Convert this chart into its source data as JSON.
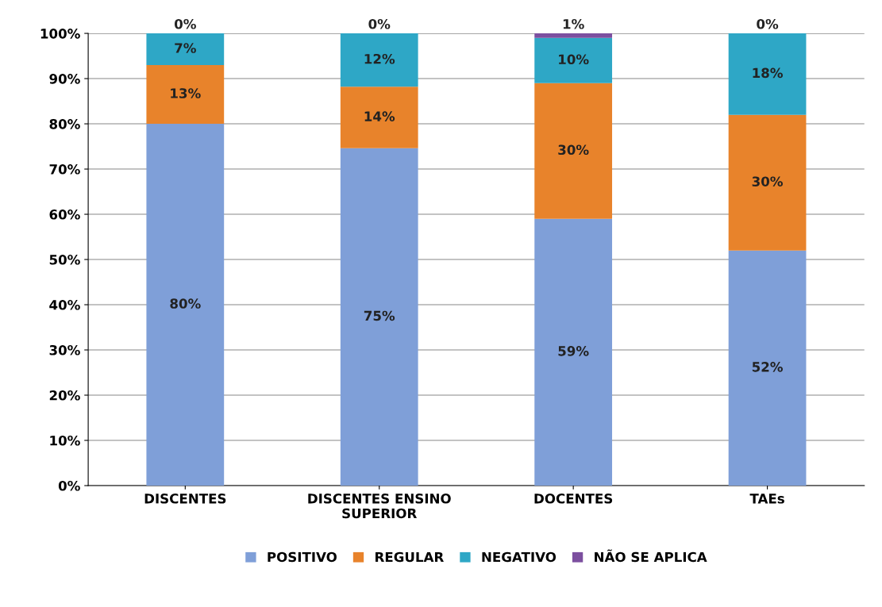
{
  "chart_data": {
    "type": "bar",
    "stacked": true,
    "categories": [
      "DISCENTES",
      "DISCENTES ENSINO\nSUPERIOR",
      "DOCENTES",
      "TAEs"
    ],
    "series": [
      {
        "name": "POSITIVO",
        "color": "#7f9fd8",
        "values": [
          80,
          74.6,
          59,
          52
        ],
        "value_labels": [
          "80%",
          "75%",
          "59%",
          "52%"
        ]
      },
      {
        "name": "REGULAR",
        "color": "#e8832b",
        "values": [
          13,
          13.6,
          30,
          30
        ],
        "value_labels": [
          "13%",
          "14%",
          "30%",
          "30%"
        ]
      },
      {
        "name": "NEGATIVO",
        "color": "#2ea7c6",
        "values": [
          7,
          11.8,
          10,
          18
        ],
        "value_labels": [
          "7%",
          "12%",
          "10%",
          "18%"
        ]
      },
      {
        "name": "NÃO SE APLICA",
        "color": "#7c4f9f",
        "values": [
          0,
          0,
          1,
          0
        ],
        "value_labels": [
          "0%",
          "0%",
          "1%",
          "0%"
        ]
      }
    ],
    "ylim": [
      0,
      100
    ],
    "yticks": [
      {
        "value": 0,
        "label": "0%"
      },
      {
        "value": 10,
        "label": "10%"
      },
      {
        "value": 20,
        "label": "20%"
      },
      {
        "value": 30,
        "label": "30%"
      },
      {
        "value": 40,
        "label": "40%"
      },
      {
        "value": 50,
        "label": "50%"
      },
      {
        "value": 60,
        "label": "60%"
      },
      {
        "value": 70,
        "label": "70%"
      },
      {
        "value": 80,
        "label": "80%"
      },
      {
        "value": 90,
        "label": "90%"
      },
      {
        "value": 100,
        "label": "100%"
      }
    ],
    "grid": "y",
    "legend": "bottom"
  }
}
